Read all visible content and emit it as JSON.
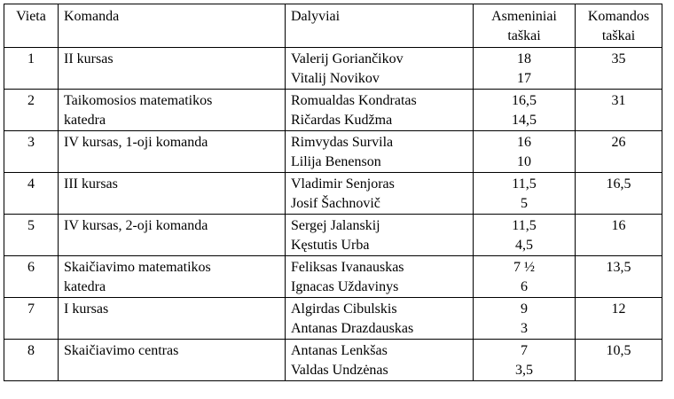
{
  "headers": {
    "place": "Vieta",
    "team": "Komanda",
    "participants": "Dalyviai",
    "personal_points_line1": "Asmeniniai",
    "personal_points_line2": "taškai",
    "team_points_line1": "Komandos",
    "team_points_line2": "taškai"
  },
  "rows": [
    {
      "place": "1",
      "team_line1": "II kursas",
      "team_line2": "",
      "participant1": "Valerij Goriančikov",
      "participant2": "Vitalij Novikov",
      "points1": "18",
      "points2": "17",
      "team_points": "35"
    },
    {
      "place": "2",
      "team_line1": "Taikomosios matematikos",
      "team_line2": "katedra",
      "participant1": "Romualdas Kondratas",
      "participant2": "Ričardas Kudžma",
      "points1": "16,5",
      "points2": "14,5",
      "team_points": "31"
    },
    {
      "place": "3",
      "team_line1": "IV kursas, 1-oji komanda",
      "team_line2": "",
      "participant1": "Rimvydas Survila",
      "participant2": "Lilija Benenson",
      "points1": "16",
      "points2": "10",
      "team_points": "26"
    },
    {
      "place": "4",
      "team_line1": "III kursas",
      "team_line2": "",
      "participant1": "Vladimir Senjoras",
      "participant2": "Josif Šachnovič",
      "points1": "11,5",
      "points2": "5",
      "team_points": "16,5"
    },
    {
      "place": "5",
      "team_line1": "IV kursas, 2-oji komanda",
      "team_line2": "",
      "participant1": "Sergej Jalanskij",
      "participant2": "Kęstutis Urba",
      "points1": "11,5",
      "points2": "4,5",
      "team_points": "16"
    },
    {
      "place": "6",
      "team_line1": "Skaičiavimo matematikos",
      "team_line2": "katedra",
      "participant1": "Feliksas Ivanauskas",
      "participant2": "Ignacas Uždavinys",
      "points1": "7 ½",
      "points2": "6",
      "team_points": "13,5"
    },
    {
      "place": "7",
      "team_line1": "I kursas",
      "team_line2": "",
      "participant1": "Algirdas Cibulskis",
      "participant2": "Antanas Drazdauskas",
      "points1": "9",
      "points2": "3",
      "team_points": "12"
    },
    {
      "place": "8",
      "team_line1": "Skaičiavimo centras",
      "team_line2": "",
      "participant1": "Antanas Lenkšas",
      "participant2": "Valdas Undzėnas",
      "points1": "7",
      "points2": "3,5",
      "team_points": "10,5"
    }
  ]
}
